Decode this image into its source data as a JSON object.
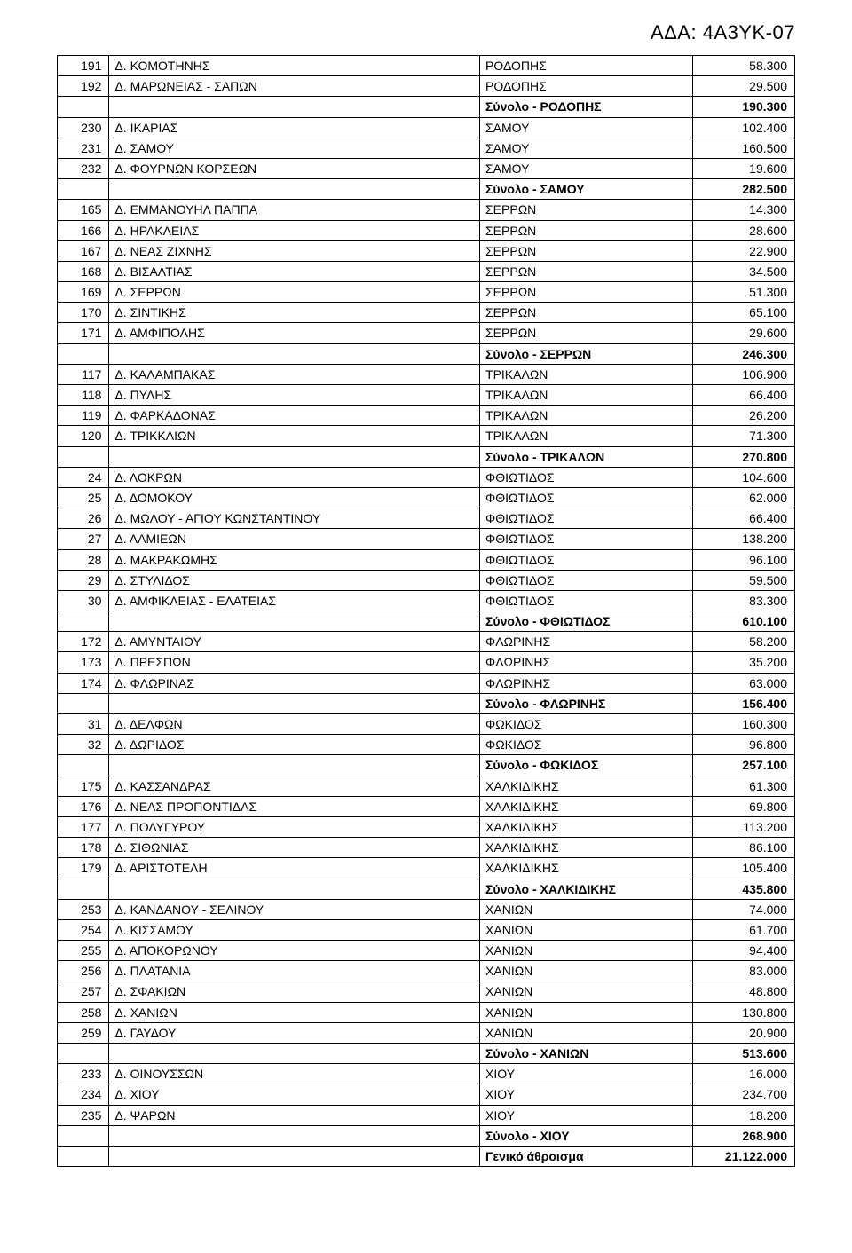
{
  "doc_id": "ΑΔΑ: 4Α3ΥΚ-07",
  "columns": {
    "c1_width": 56,
    "c2_width": 400,
    "c3_width": 230,
    "c4_width": 110
  },
  "rows": [
    {
      "num": "191",
      "name": "Δ. ΚΟΜΟΤΗΝΗΣ",
      "region": "ΡΟΔΟΠΗΣ",
      "value": "58.300"
    },
    {
      "num": "192",
      "name": "Δ. ΜΑΡΩΝΕΙΑΣ - ΣΑΠΩΝ",
      "region": "ΡΟΔΟΠΗΣ",
      "value": "29.500"
    },
    {
      "num": "",
      "name": "",
      "region": "Σύνολο - ΡΟΔΟΠΗΣ",
      "value": "190.300",
      "bold": true
    },
    {
      "num": "230",
      "name": "Δ. ΙΚΑΡΙΑΣ",
      "region": "ΣΑΜΟΥ",
      "value": "102.400"
    },
    {
      "num": "231",
      "name": "Δ. ΣΑΜΟΥ",
      "region": "ΣΑΜΟΥ",
      "value": "160.500"
    },
    {
      "num": "232",
      "name": "Δ. ΦΟΥΡΝΩΝ ΚΟΡΣΕΩΝ",
      "region": "ΣΑΜΟΥ",
      "value": "19.600"
    },
    {
      "num": "",
      "name": "",
      "region": "Σύνολο - ΣΑΜΟΥ",
      "value": "282.500",
      "bold": true
    },
    {
      "num": "165",
      "name": "Δ. ΕΜΜΑΝΟΥΗΛ ΠΑΠΠΑ",
      "region": "ΣΕΡΡΩΝ",
      "value": "14.300"
    },
    {
      "num": "166",
      "name": "Δ. ΗΡΑΚΛΕΙΑΣ",
      "region": "ΣΕΡΡΩΝ",
      "value": "28.600"
    },
    {
      "num": "167",
      "name": "Δ. ΝΕΑΣ ΖΙΧΝΗΣ",
      "region": "ΣΕΡΡΩΝ",
      "value": "22.900"
    },
    {
      "num": "168",
      "name": "Δ. ΒΙΣΑΛΤΙΑΣ",
      "region": "ΣΕΡΡΩΝ",
      "value": "34.500"
    },
    {
      "num": "169",
      "name": "Δ. ΣΕΡΡΩΝ",
      "region": "ΣΕΡΡΩΝ",
      "value": "51.300"
    },
    {
      "num": "170",
      "name": "Δ. ΣΙΝΤΙΚΗΣ",
      "region": "ΣΕΡΡΩΝ",
      "value": "65.100"
    },
    {
      "num": "171",
      "name": "Δ. ΑΜΦΙΠΟΛΗΣ",
      "region": "ΣΕΡΡΩΝ",
      "value": "29.600"
    },
    {
      "num": "",
      "name": "",
      "region": "Σύνολο - ΣΕΡΡΩΝ",
      "value": "246.300",
      "bold": true
    },
    {
      "num": "117",
      "name": "Δ. ΚΑΛΑΜΠΑΚΑΣ",
      "region": "ΤΡΙΚΑΛΩΝ",
      "value": "106.900"
    },
    {
      "num": "118",
      "name": "Δ. ΠΥΛΗΣ",
      "region": "ΤΡΙΚΑΛΩΝ",
      "value": "66.400"
    },
    {
      "num": "119",
      "name": "Δ. ΦΑΡΚΑΔΟΝΑΣ",
      "region": "ΤΡΙΚΑΛΩΝ",
      "value": "26.200"
    },
    {
      "num": "120",
      "name": "Δ. ΤΡΙΚΚΑΙΩΝ",
      "region": "ΤΡΙΚΑΛΩΝ",
      "value": "71.300"
    },
    {
      "num": "",
      "name": "",
      "region": "Σύνολο - ΤΡΙΚΑΛΩΝ",
      "value": "270.800",
      "bold": true
    },
    {
      "num": "24",
      "name": "Δ. ΛΟΚΡΩΝ",
      "region": "ΦΘΙΩΤΙΔΟΣ",
      "value": "104.600"
    },
    {
      "num": "25",
      "name": "Δ. ΔΟΜΟΚΟΥ",
      "region": "ΦΘΙΩΤΙΔΟΣ",
      "value": "62.000"
    },
    {
      "num": "26",
      "name": "Δ. ΜΩΛΟΥ - ΑΓΙΟΥ ΚΩΝΣΤΑΝΤΙΝΟΥ",
      "region": "ΦΘΙΩΤΙΔΟΣ",
      "value": "66.400"
    },
    {
      "num": "27",
      "name": "Δ. ΛΑΜΙΕΩΝ",
      "region": "ΦΘΙΩΤΙΔΟΣ",
      "value": "138.200"
    },
    {
      "num": "28",
      "name": "Δ. ΜΑΚΡΑΚΩΜΗΣ",
      "region": "ΦΘΙΩΤΙΔΟΣ",
      "value": "96.100"
    },
    {
      "num": "29",
      "name": "Δ. ΣΤΥΛΙΔΟΣ",
      "region": "ΦΘΙΩΤΙΔΟΣ",
      "value": "59.500"
    },
    {
      "num": "30",
      "name": "Δ. ΑΜΦΙΚΛΕΙΑΣ - ΕΛΑΤΕΙΑΣ",
      "region": "ΦΘΙΩΤΙΔΟΣ",
      "value": "83.300"
    },
    {
      "num": "",
      "name": "",
      "region": "Σύνολο - ΦΘΙΩΤΙΔΟΣ",
      "value": "610.100",
      "bold": true
    },
    {
      "num": "172",
      "name": "Δ. ΑΜΥΝΤΑΙΟΥ",
      "region": "ΦΛΩΡΙΝΗΣ",
      "value": "58.200"
    },
    {
      "num": "173",
      "name": "Δ. ΠΡΕΣΠΩΝ",
      "region": "ΦΛΩΡΙΝΗΣ",
      "value": "35.200"
    },
    {
      "num": "174",
      "name": "Δ. ΦΛΩΡΙΝΑΣ",
      "region": "ΦΛΩΡΙΝΗΣ",
      "value": "63.000"
    },
    {
      "num": "",
      "name": "",
      "region": "Σύνολο - ΦΛΩΡΙΝΗΣ",
      "value": "156.400",
      "bold": true
    },
    {
      "num": "31",
      "name": "Δ. ΔΕΛΦΩΝ",
      "region": "ΦΩΚΙΔΟΣ",
      "value": "160.300"
    },
    {
      "num": "32",
      "name": "Δ. ΔΩΡΙΔΟΣ",
      "region": "ΦΩΚΙΔΟΣ",
      "value": "96.800"
    },
    {
      "num": "",
      "name": "",
      "region": "Σύνολο - ΦΩΚΙΔΟΣ",
      "value": "257.100",
      "bold": true
    },
    {
      "num": "175",
      "name": "Δ. ΚΑΣΣΑΝΔΡΑΣ",
      "region": "ΧΑΛΚΙΔΙΚΗΣ",
      "value": "61.300"
    },
    {
      "num": "176",
      "name": "Δ. ΝΕΑΣ ΠΡΟΠΟΝΤΙΔΑΣ",
      "region": "ΧΑΛΚΙΔΙΚΗΣ",
      "value": "69.800"
    },
    {
      "num": "177",
      "name": "Δ. ΠΟΛΥΓΥΡΟΥ",
      "region": "ΧΑΛΚΙΔΙΚΗΣ",
      "value": "113.200"
    },
    {
      "num": "178",
      "name": "Δ. ΣΙΘΩΝΙΑΣ",
      "region": "ΧΑΛΚΙΔΙΚΗΣ",
      "value": "86.100"
    },
    {
      "num": "179",
      "name": "Δ. ΑΡΙΣΤΟΤΕΛΗ",
      "region": "ΧΑΛΚΙΔΙΚΗΣ",
      "value": "105.400"
    },
    {
      "num": "",
      "name": "",
      "region": "Σύνολο - ΧΑΛΚΙΔΙΚΗΣ",
      "value": "435.800",
      "bold": true
    },
    {
      "num": "253",
      "name": "Δ. ΚΑΝΔΑΝΟΥ - ΣΕΛΙΝΟΥ",
      "region": "ΧΑΝΙΩΝ",
      "value": "74.000"
    },
    {
      "num": "254",
      "name": "Δ. ΚΙΣΣΑΜΟΥ",
      "region": "ΧΑΝΙΩΝ",
      "value": "61.700"
    },
    {
      "num": "255",
      "name": "Δ. ΑΠΟΚΟΡΩΝΟΥ",
      "region": "ΧΑΝΙΩΝ",
      "value": "94.400"
    },
    {
      "num": "256",
      "name": "Δ. ΠΛΑΤΑΝΙΑ",
      "region": "ΧΑΝΙΩΝ",
      "value": "83.000"
    },
    {
      "num": "257",
      "name": "Δ. ΣΦΑΚΙΩΝ",
      "region": "ΧΑΝΙΩΝ",
      "value": "48.800"
    },
    {
      "num": "258",
      "name": "Δ. ΧΑΝΙΩΝ",
      "region": "ΧΑΝΙΩΝ",
      "value": "130.800"
    },
    {
      "num": "259",
      "name": "Δ. ΓΑΥΔΟΥ",
      "region": "ΧΑΝΙΩΝ",
      "value": "20.900"
    },
    {
      "num": "",
      "name": "",
      "region": "Σύνολο - ΧΑΝΙΩΝ",
      "value": "513.600",
      "bold": true
    },
    {
      "num": "233",
      "name": "Δ. ΟΙΝΟΥΣΣΩΝ",
      "region": "ΧΙΟΥ",
      "value": "16.000"
    },
    {
      "num": "234",
      "name": "Δ. ΧΙΟΥ",
      "region": "ΧΙΟΥ",
      "value": "234.700"
    },
    {
      "num": "235",
      "name": "Δ. ΨΑΡΩΝ",
      "region": "ΧΙΟΥ",
      "value": "18.200"
    },
    {
      "num": "",
      "name": "",
      "region": "Σύνολο - ΧΙΟΥ",
      "value": "268.900",
      "bold": true
    },
    {
      "num": "",
      "name": "",
      "region": "Γενικό άθροισμα",
      "value": "21.122.000",
      "bold": true
    }
  ]
}
